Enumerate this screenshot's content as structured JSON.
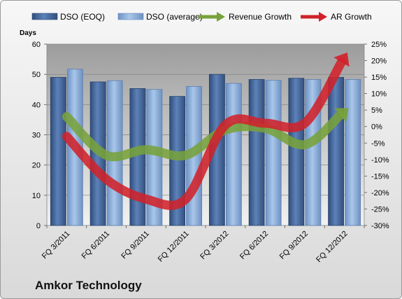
{
  "chart_data": {
    "type": "bar",
    "title": "",
    "company": "Amkor Technology",
    "categories": [
      "FQ 3/2011",
      "FQ 6/2011",
      "FQ 9/2011",
      "FQ 12/2011",
      "FQ 3/2012",
      "FQ 6/2012",
      "FQ 9/2012",
      "FQ 12/2012"
    ],
    "left_axis": {
      "label": "Days",
      "min": 0,
      "max": 60,
      "ticks": [
        "0",
        "10",
        "20",
        "30",
        "40",
        "50",
        "60"
      ]
    },
    "right_axis": {
      "min": -30,
      "max": 25,
      "ticks": [
        "-30%",
        "-25%",
        "-20%",
        "-15%",
        "-10%",
        "-5%",
        "0%",
        "5%",
        "10%",
        "15%",
        "20%",
        "25%"
      ]
    },
    "series": [
      {
        "name": "DSO (EOQ)",
        "type": "bar",
        "axis": "left",
        "values": [
          49,
          47.5,
          45.3,
          42.7,
          50,
          48.3,
          48.7,
          49
        ],
        "color": "#4a6fa5"
      },
      {
        "name": "DSO (average)",
        "type": "bar",
        "axis": "left",
        "values": [
          51.7,
          47.9,
          45,
          46,
          47,
          48,
          48.3,
          48.3
        ],
        "color": "#8fb3df"
      },
      {
        "name": "Revenue Growth",
        "type": "line",
        "axis": "right",
        "values": [
          3,
          -8.7,
          -7,
          -8.7,
          -1,
          -0.5,
          -5.5,
          4.5
        ],
        "color": "#77a23b"
      },
      {
        "name": "AR Growth",
        "type": "line",
        "axis": "right",
        "values": [
          -3,
          -16,
          -22,
          -22,
          0.5,
          1,
          1,
          21
        ],
        "color": "#d0222a"
      }
    ],
    "grid": true,
    "legend_position": "top"
  }
}
